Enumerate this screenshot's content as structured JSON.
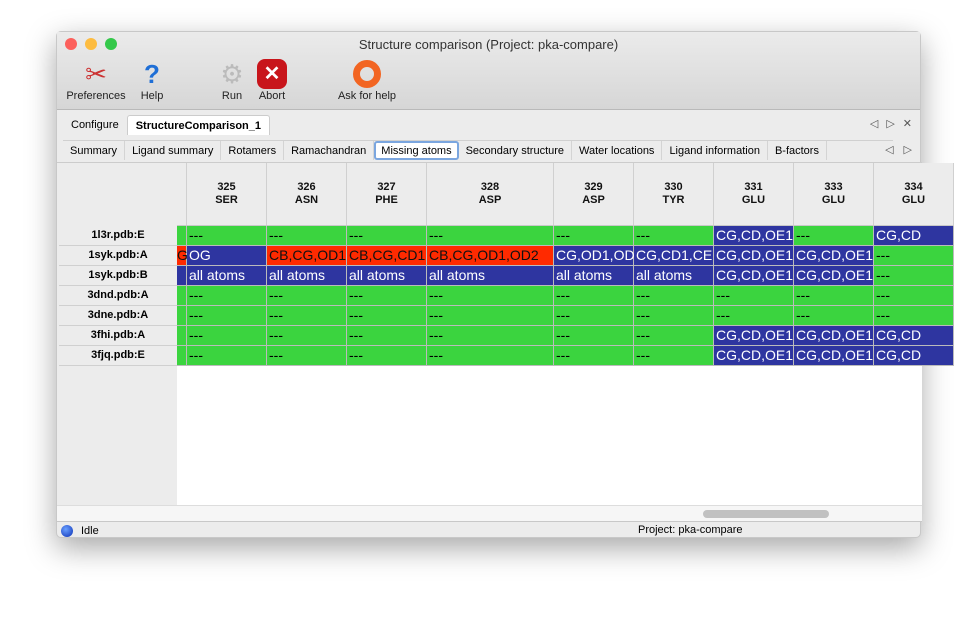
{
  "window": {
    "title": "Structure comparison (Project: pka-compare)"
  },
  "toolbar": [
    {
      "label": "Preferences",
      "icon": "tools-icon"
    },
    {
      "label": "Help",
      "icon": "help-icon"
    },
    {
      "label": "Run",
      "icon": "gear-icon"
    },
    {
      "label": "Abort",
      "icon": "abort-icon"
    },
    {
      "label": "Ask for help",
      "icon": "lifebuoy-icon"
    }
  ],
  "main_tabs": [
    {
      "label": "Configure",
      "active": false
    },
    {
      "label": "StructureComparison_1",
      "active": true
    }
  ],
  "sub_tabs": [
    {
      "label": "Summary"
    },
    {
      "label": "Ligand summary"
    },
    {
      "label": "Rotamers"
    },
    {
      "label": "Ramachandran"
    },
    {
      "label": "Missing atoms",
      "active": true
    },
    {
      "label": "Secondary structure"
    },
    {
      "label": "Water locations"
    },
    {
      "label": "Ligand information"
    },
    {
      "label": "B-factors"
    }
  ],
  "colors": {
    "present": "#3bd43f",
    "missing_blue": "#2e35a0",
    "missing_red": "#ff2a00"
  },
  "table": {
    "columns": [
      {
        "num": "",
        "res": ""
      },
      {
        "num": "325",
        "res": "SER"
      },
      {
        "num": "326",
        "res": "ASN"
      },
      {
        "num": "327",
        "res": "PHE"
      },
      {
        "num": "328",
        "res": "ASP"
      },
      {
        "num": "329",
        "res": "ASP"
      },
      {
        "num": "330",
        "res": "TYR"
      },
      {
        "num": "331",
        "res": "GLU"
      },
      {
        "num": "333",
        "res": "GLU"
      },
      {
        "num": "334",
        "res": "GLU"
      }
    ],
    "rows": [
      {
        "label": "1l3r.pdb:E",
        "cells": [
          [
            "",
            "g"
          ],
          [
            "---",
            "g"
          ],
          [
            "---",
            "g"
          ],
          [
            "---",
            "g"
          ],
          [
            "---",
            "g"
          ],
          [
            "---",
            "g"
          ],
          [
            "---",
            "g"
          ],
          [
            "CG,CD,OE1",
            "b"
          ],
          [
            "---",
            "g"
          ],
          [
            "CG,CD",
            "b"
          ]
        ]
      },
      {
        "label": "1syk.pdb:A",
        "cells": [
          [
            "G",
            "r"
          ],
          [
            "OG",
            "b"
          ],
          [
            "CB,CG,OD1",
            "r"
          ],
          [
            "CB,CG,CD1",
            "r"
          ],
          [
            "CB,CG,OD1,OD2",
            "r"
          ],
          [
            "CG,OD1,OD",
            "b"
          ],
          [
            "CG,CD1,CE",
            "b"
          ],
          [
            "CG,CD,OE1",
            "b"
          ],
          [
            "CG,CD,OE1",
            "b"
          ],
          [
            "---",
            "g"
          ]
        ]
      },
      {
        "label": "1syk.pdb:B",
        "cells": [
          [
            "",
            "b"
          ],
          [
            "all atoms",
            "b"
          ],
          [
            "all atoms",
            "b"
          ],
          [
            "all atoms",
            "b"
          ],
          [
            "all atoms",
            "b"
          ],
          [
            "all atoms",
            "b"
          ],
          [
            "all atoms",
            "b"
          ],
          [
            "CG,CD,OE1",
            "b"
          ],
          [
            "CG,CD,OE1",
            "b"
          ],
          [
            "---",
            "g"
          ]
        ]
      },
      {
        "label": "3dnd.pdb:A",
        "cells": [
          [
            "",
            "g"
          ],
          [
            "---",
            "g"
          ],
          [
            "---",
            "g"
          ],
          [
            "---",
            "g"
          ],
          [
            "---",
            "g"
          ],
          [
            "---",
            "g"
          ],
          [
            "---",
            "g"
          ],
          [
            "---",
            "g"
          ],
          [
            "---",
            "g"
          ],
          [
            "---",
            "g"
          ]
        ]
      },
      {
        "label": "3dne.pdb:A",
        "cells": [
          [
            "",
            "g"
          ],
          [
            "---",
            "g"
          ],
          [
            "---",
            "g"
          ],
          [
            "---",
            "g"
          ],
          [
            "---",
            "g"
          ],
          [
            "---",
            "g"
          ],
          [
            "---",
            "g"
          ],
          [
            "---",
            "g"
          ],
          [
            "---",
            "g"
          ],
          [
            "---",
            "g"
          ]
        ]
      },
      {
        "label": "3fhi.pdb:A",
        "cells": [
          [
            "",
            "g"
          ],
          [
            "---",
            "g"
          ],
          [
            "---",
            "g"
          ],
          [
            "---",
            "g"
          ],
          [
            "---",
            "g"
          ],
          [
            "---",
            "g"
          ],
          [
            "---",
            "g"
          ],
          [
            "CG,CD,OE1",
            "b"
          ],
          [
            "CG,CD,OE1",
            "b"
          ],
          [
            "CG,CD",
            "b"
          ]
        ]
      },
      {
        "label": "3fjq.pdb:E",
        "cells": [
          [
            "",
            "g"
          ],
          [
            "---",
            "g"
          ],
          [
            "---",
            "g"
          ],
          [
            "---",
            "g"
          ],
          [
            "---",
            "g"
          ],
          [
            "---",
            "g"
          ],
          [
            "---",
            "g"
          ],
          [
            "CG,CD,OE1",
            "b"
          ],
          [
            "CG,CD,OE1",
            "b"
          ],
          [
            "CG,CD",
            "b"
          ]
        ]
      }
    ]
  },
  "status": {
    "state": "Idle",
    "project": "Project: pka-compare"
  }
}
